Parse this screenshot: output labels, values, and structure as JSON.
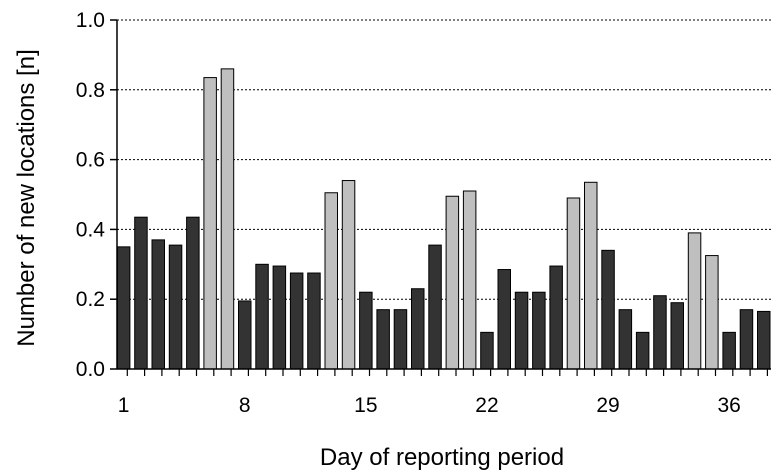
{
  "chart_data": {
    "type": "bar",
    "title": "",
    "xlabel": "Day of reporting period",
    "ylabel": "Number of new locations [n]",
    "ylim": [
      0,
      1.0
    ],
    "yticks": [
      "0.0",
      "0.2",
      "0.4",
      "0.6",
      "0.8",
      "1.0"
    ],
    "xtick_labels": [
      "1",
      "8",
      "15",
      "22",
      "29",
      "36"
    ],
    "xtick_days": [
      1,
      8,
      15,
      22,
      29,
      36
    ],
    "grid": "horizontal dotted",
    "days": [
      1,
      2,
      3,
      4,
      5,
      6,
      7,
      8,
      9,
      10,
      11,
      12,
      13,
      14,
      15,
      16,
      17,
      18,
      19,
      20,
      21,
      22,
      23,
      24,
      25,
      26,
      27,
      28,
      29,
      30,
      31,
      32,
      33,
      34,
      35,
      36,
      37,
      38
    ],
    "values": [
      0.35,
      0.435,
      0.37,
      0.355,
      0.435,
      0.835,
      0.86,
      0.195,
      0.3,
      0.295,
      0.275,
      0.275,
      0.505,
      0.54,
      0.22,
      0.17,
      0.17,
      0.23,
      0.355,
      0.495,
      0.51,
      0.105,
      0.285,
      0.22,
      0.22,
      0.295,
      0.49,
      0.535,
      0.34,
      0.17,
      0.105,
      0.21,
      0.19,
      0.39,
      0.325,
      0.105,
      0.17,
      0.165
    ],
    "weekend": [
      false,
      false,
      false,
      false,
      false,
      true,
      true,
      false,
      false,
      false,
      false,
      false,
      true,
      true,
      false,
      false,
      false,
      false,
      false,
      true,
      true,
      false,
      false,
      false,
      false,
      false,
      true,
      true,
      false,
      false,
      false,
      false,
      false,
      true,
      true,
      false,
      false,
      false
    ],
    "colors": {
      "weekday": "#333333",
      "weekend": "#bfbfbf",
      "axis": "#000000",
      "grid": "#000000"
    }
  }
}
